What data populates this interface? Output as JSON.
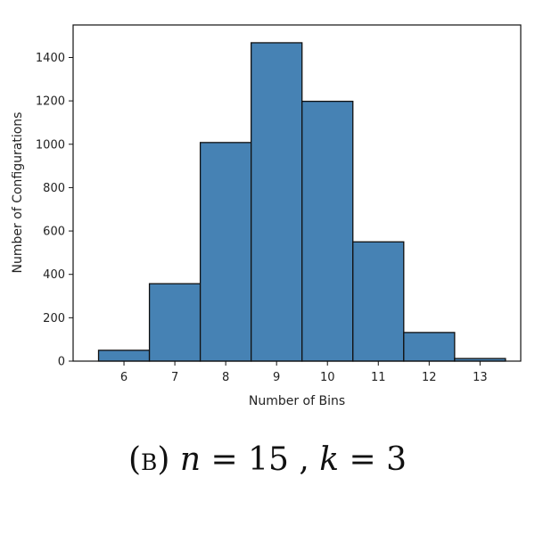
{
  "chart_data": {
    "type": "bar",
    "categories": [
      "6",
      "7",
      "8",
      "9",
      "10",
      "11",
      "12",
      "13"
    ],
    "values": [
      50,
      357,
      1008,
      1468,
      1198,
      550,
      132,
      12
    ],
    "xlabel": "Number of Bins",
    "ylabel": "Number of Configurations",
    "ylim": [
      0,
      1550
    ],
    "yticks": [
      0,
      200,
      400,
      600,
      800,
      1000,
      1200,
      1400
    ],
    "bar_color": "#4682b4",
    "edge_color": "#111111",
    "grid": false
  },
  "caption": {
    "tag": "(b)",
    "n_var": "n",
    "n_eq": " = 15 ,",
    "k_var": "k",
    "k_eq": " = 3"
  }
}
